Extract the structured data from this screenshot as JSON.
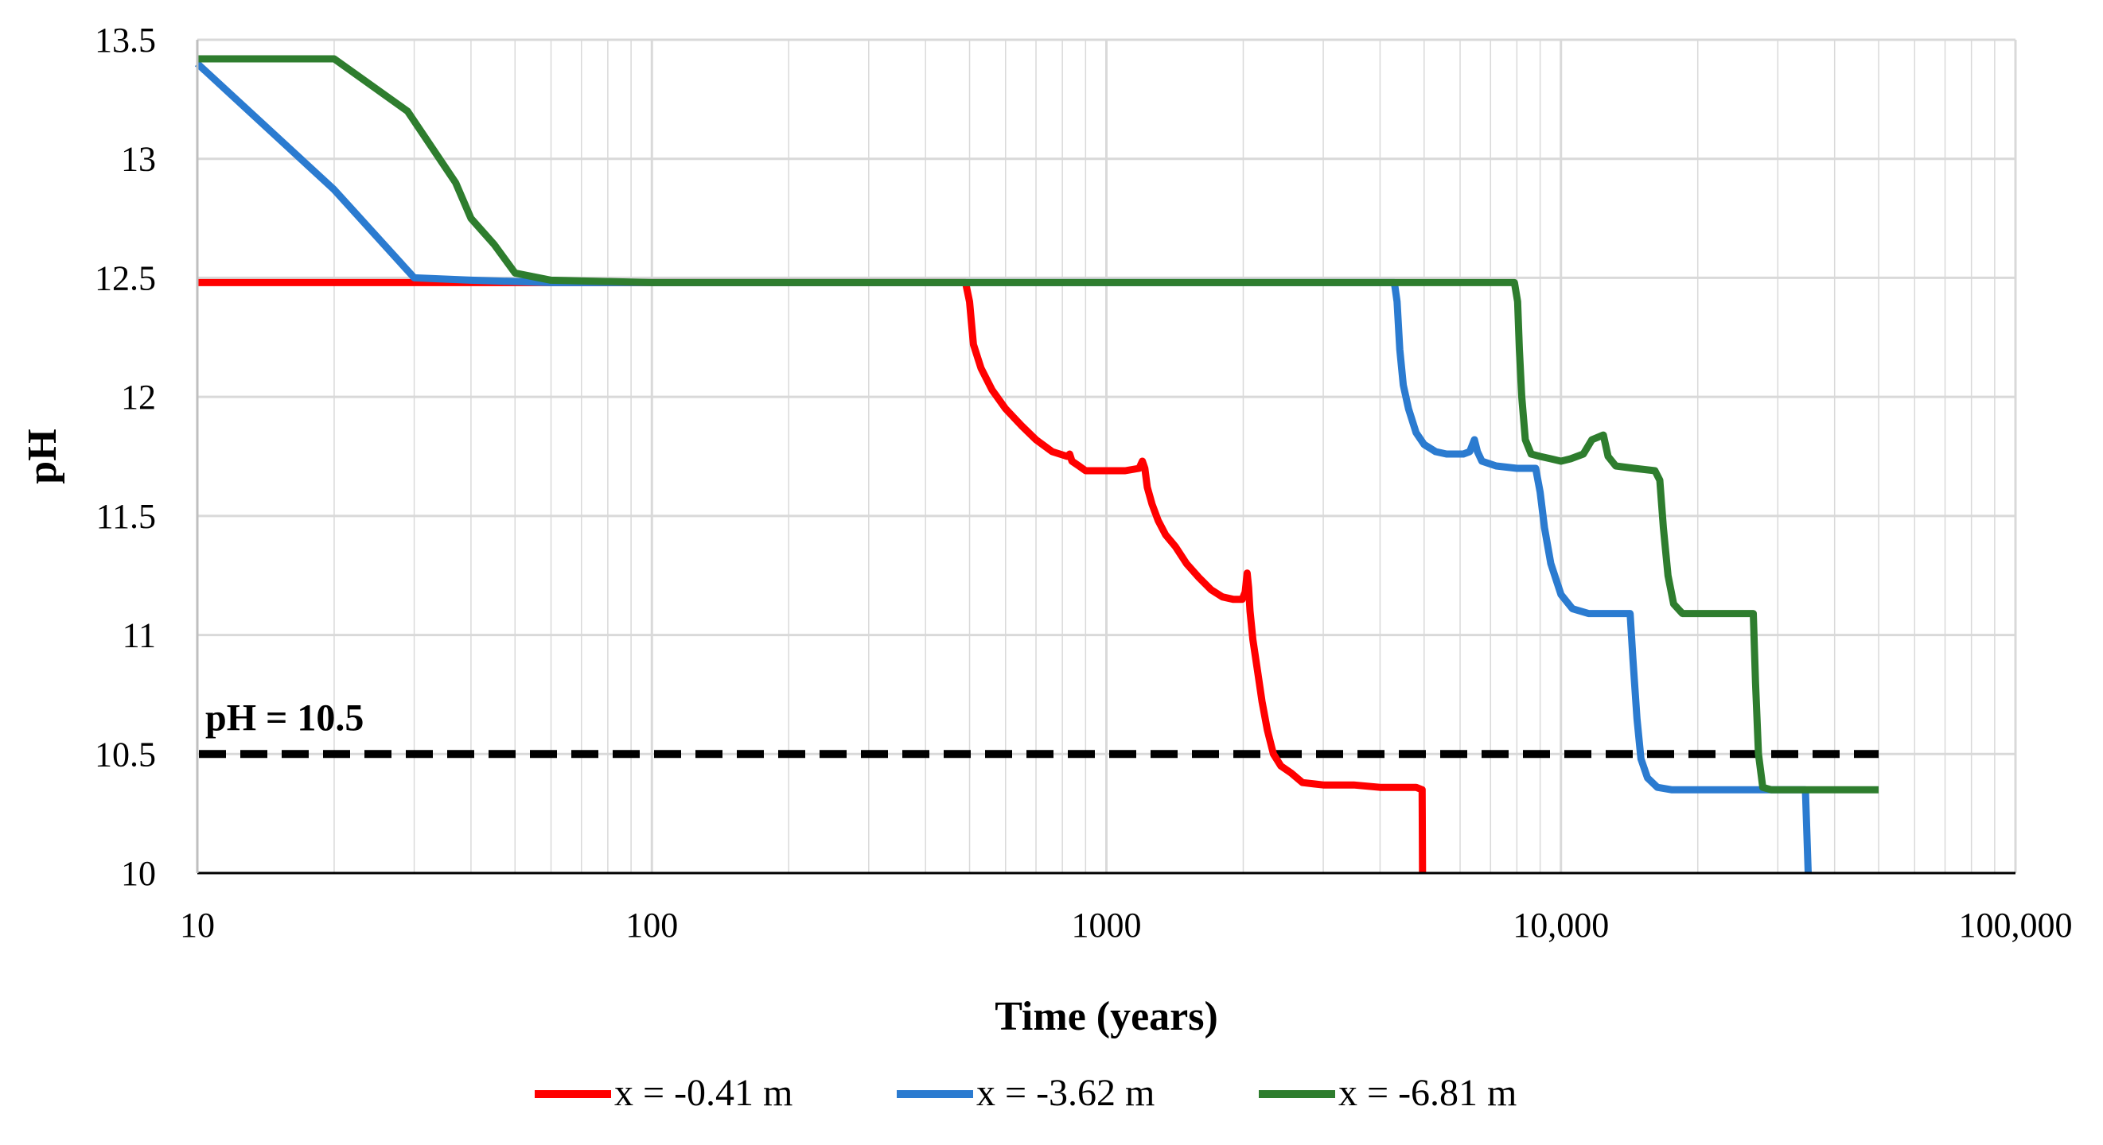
{
  "chart_data": {
    "type": "line",
    "title": "",
    "xlabel": "Time (years)",
    "ylabel": "pH",
    "xscale": "log",
    "xlim": [
      10,
      100000
    ],
    "ylim": [
      10,
      13.5
    ],
    "xticks": [
      10,
      100,
      1000,
      10000,
      100000
    ],
    "xtick_labels": [
      "10",
      "100",
      "1000",
      "10,000",
      "100,000"
    ],
    "yticks": [
      10,
      10.5,
      11,
      11.5,
      12,
      12.5,
      13,
      13.5
    ],
    "ytick_labels": [
      "10",
      "10.5",
      "11",
      "11.5",
      "12",
      "12.5",
      "13",
      "13.5"
    ],
    "grid": true,
    "legend_position": "bottom",
    "colors": {
      "red": "#ff0000",
      "blue": "#2b7bd0",
      "green": "#2e7d2e",
      "threshold": "#000000",
      "grid": "#d9d9d9"
    },
    "threshold": {
      "label": "pH = 10.5",
      "value": 10.5,
      "x_range": [
        10,
        50000
      ]
    },
    "series": [
      {
        "name": "x = -0.41 m",
        "color": "#ff0000",
        "points": [
          [
            10,
            12.48
          ],
          [
            100,
            12.48
          ],
          [
            490,
            12.48
          ],
          [
            500,
            12.4
          ],
          [
            510,
            12.22
          ],
          [
            530,
            12.12
          ],
          [
            560,
            12.03
          ],
          [
            600,
            11.95
          ],
          [
            650,
            11.88
          ],
          [
            700,
            11.82
          ],
          [
            760,
            11.77
          ],
          [
            820,
            11.75
          ],
          [
            830,
            11.76
          ],
          [
            840,
            11.73
          ],
          [
            870,
            11.71
          ],
          [
            900,
            11.69
          ],
          [
            1000,
            11.69
          ],
          [
            1100,
            11.69
          ],
          [
            1180,
            11.7
          ],
          [
            1200,
            11.73
          ],
          [
            1215,
            11.7
          ],
          [
            1230,
            11.62
          ],
          [
            1260,
            11.55
          ],
          [
            1300,
            11.48
          ],
          [
            1350,
            11.42
          ],
          [
            1420,
            11.37
          ],
          [
            1500,
            11.3
          ],
          [
            1600,
            11.24
          ],
          [
            1700,
            11.19
          ],
          [
            1800,
            11.16
          ],
          [
            1900,
            11.15
          ],
          [
            1990,
            11.15
          ],
          [
            2020,
            11.18
          ],
          [
            2040,
            11.26
          ],
          [
            2055,
            11.2
          ],
          [
            2070,
            11.1
          ],
          [
            2100,
            10.98
          ],
          [
            2150,
            10.85
          ],
          [
            2200,
            10.72
          ],
          [
            2260,
            10.6
          ],
          [
            2330,
            10.5
          ],
          [
            2420,
            10.45
          ],
          [
            2550,
            10.42
          ],
          [
            2700,
            10.38
          ],
          [
            3000,
            10.37
          ],
          [
            3500,
            10.37
          ],
          [
            4000,
            10.36
          ],
          [
            4800,
            10.36
          ],
          [
            4950,
            10.35
          ],
          [
            4960,
            10.0
          ]
        ]
      },
      {
        "name": "x = -3.62 m",
        "color": "#2b7bd0",
        "points": [
          [
            10,
            13.4
          ],
          [
            20,
            12.87
          ],
          [
            30,
            12.5
          ],
          [
            40,
            12.49
          ],
          [
            60,
            12.48
          ],
          [
            100,
            12.48
          ],
          [
            1000,
            12.48
          ],
          [
            4300,
            12.48
          ],
          [
            4360,
            12.4
          ],
          [
            4420,
            12.2
          ],
          [
            4500,
            12.05
          ],
          [
            4620,
            11.95
          ],
          [
            4800,
            11.85
          ],
          [
            5000,
            11.8
          ],
          [
            5300,
            11.77
          ],
          [
            5600,
            11.76
          ],
          [
            6100,
            11.76
          ],
          [
            6300,
            11.77
          ],
          [
            6450,
            11.82
          ],
          [
            6550,
            11.77
          ],
          [
            6700,
            11.73
          ],
          [
            7200,
            11.71
          ],
          [
            8000,
            11.7
          ],
          [
            8800,
            11.7
          ],
          [
            9000,
            11.6
          ],
          [
            9200,
            11.45
          ],
          [
            9500,
            11.3
          ],
          [
            10000,
            11.17
          ],
          [
            10600,
            11.11
          ],
          [
            11500,
            11.09
          ],
          [
            14200,
            11.09
          ],
          [
            14400,
            10.9
          ],
          [
            14700,
            10.65
          ],
          [
            15000,
            10.48
          ],
          [
            15500,
            10.4
          ],
          [
            16300,
            10.36
          ],
          [
            17500,
            10.35
          ],
          [
            34500,
            10.35
          ],
          [
            35000,
            10.0
          ]
        ]
      },
      {
        "name": "x = -6.81 m",
        "color": "#2e7d2e",
        "points": [
          [
            10,
            13.42
          ],
          [
            20,
            13.42
          ],
          [
            29,
            13.2
          ],
          [
            37,
            12.9
          ],
          [
            40,
            12.75
          ],
          [
            45,
            12.64
          ],
          [
            50,
            12.52
          ],
          [
            60,
            12.49
          ],
          [
            100,
            12.48
          ],
          [
            1000,
            12.48
          ],
          [
            7900,
            12.48
          ],
          [
            8030,
            12.4
          ],
          [
            8100,
            12.2
          ],
          [
            8200,
            12.0
          ],
          [
            8350,
            11.82
          ],
          [
            8600,
            11.76
          ],
          [
            9000,
            11.75
          ],
          [
            9500,
            11.74
          ],
          [
            10000,
            11.73
          ],
          [
            10500,
            11.74
          ],
          [
            11200,
            11.76
          ],
          [
            11700,
            11.82
          ],
          [
            12400,
            11.84
          ],
          [
            12700,
            11.75
          ],
          [
            13200,
            11.71
          ],
          [
            14500,
            11.7
          ],
          [
            16100,
            11.69
          ],
          [
            16500,
            11.65
          ],
          [
            16800,
            11.45
          ],
          [
            17200,
            11.25
          ],
          [
            17700,
            11.13
          ],
          [
            18500,
            11.09
          ],
          [
            20000,
            11.09
          ],
          [
            26500,
            11.09
          ],
          [
            26800,
            10.8
          ],
          [
            27200,
            10.5
          ],
          [
            27800,
            10.36
          ],
          [
            29000,
            10.35
          ],
          [
            50000,
            10.35
          ]
        ]
      }
    ]
  }
}
